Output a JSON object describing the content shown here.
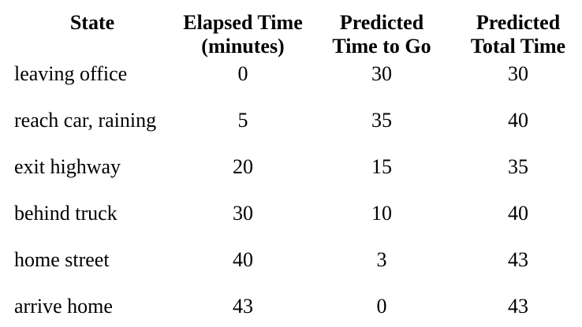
{
  "table": {
    "headers": [
      {
        "line1": "State",
        "line2": ""
      },
      {
        "line1": "Elapsed Time",
        "line2": "(minutes)"
      },
      {
        "line1": "Predicted",
        "line2": "Time to Go"
      },
      {
        "line1": "Predicted",
        "line2": "Total Time"
      }
    ],
    "rows": [
      {
        "state": "leaving office",
        "elapsed": "0",
        "to_go": "30",
        "total": "30"
      },
      {
        "state": "reach car, raining",
        "elapsed": "5",
        "to_go": "35",
        "total": "40"
      },
      {
        "state": "exit highway",
        "elapsed": "20",
        "to_go": "15",
        "total": "35"
      },
      {
        "state": "behind truck",
        "elapsed": "30",
        "to_go": "10",
        "total": "40"
      },
      {
        "state": "home street",
        "elapsed": "40",
        "to_go": "3",
        "total": "43"
      },
      {
        "state": "arrive home",
        "elapsed": "43",
        "to_go": "0",
        "total": "43"
      }
    ]
  }
}
